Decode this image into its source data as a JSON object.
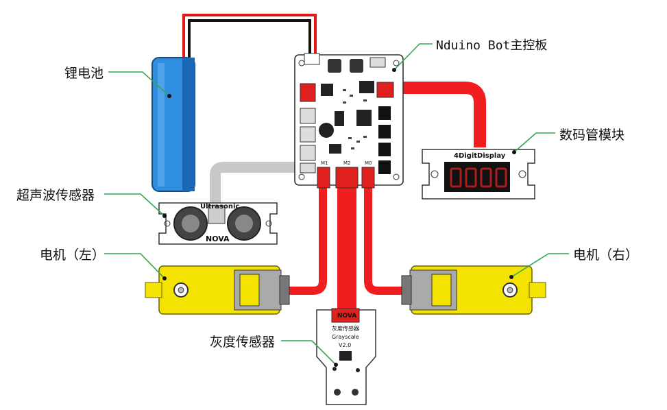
{
  "labels": {
    "battery": "锂电池",
    "mainboard": "Nduino Bot主控板",
    "display_module": "数码管模块",
    "ultrasonic_sensor": "超声波传感器",
    "motor_left": "电机（左）",
    "motor_right": "电机（右）",
    "grayscale_sensor": "灰度传感器"
  },
  "component_text": {
    "display_board_title": "4DigitDisplay",
    "ultrasonic_brand": "Ultrasonic",
    "ultrasonic_nova": "NOVA",
    "grayscale_nova": "NOVA",
    "grayscale_cn": "灰度传感器",
    "grayscale_en": "Grayscale",
    "grayscale_version": "V2.0",
    "board_ports": {
      "m1": "M1",
      "m2": "M2",
      "m0": "M0"
    }
  },
  "colors": {
    "cable_red": "#f01e1e",
    "cable_gray": "#c8c8c8",
    "leader_green": "#2fa84f",
    "battery_blue": "#2f8ee0",
    "motor_yellow": "#f4e200",
    "connector_red": "#e01f1f"
  }
}
